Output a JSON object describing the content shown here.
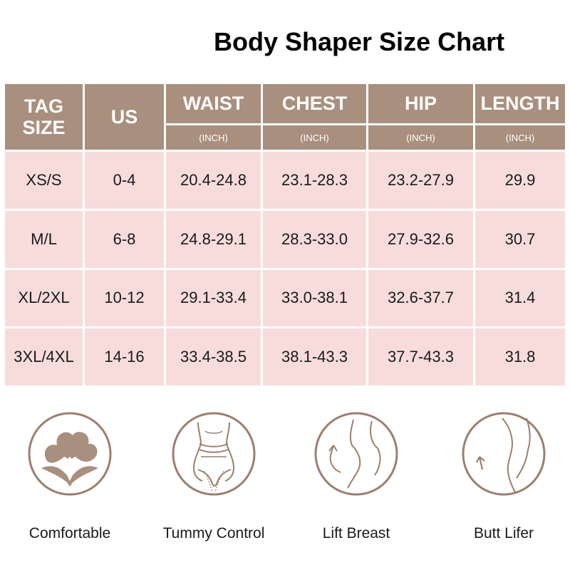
{
  "title": "Body Shaper Size Chart",
  "table": {
    "headers": {
      "tag_size": "TAG SIZE",
      "us": "US",
      "waist": "WAIST",
      "chest": "CHEST",
      "hip": "HIP",
      "length": "LENGTH",
      "unit": "(INCH)"
    },
    "rows": [
      {
        "tag": "XS/S",
        "us": "0-4",
        "waist": "20.4-24.8",
        "chest": "23.1-28.3",
        "hip": "23.2-27.9",
        "length": "29.9"
      },
      {
        "tag": "M/L",
        "us": "6-8",
        "waist": "24.8-29.1",
        "chest": "28.3-33.0",
        "hip": "27.9-32.6",
        "length": "30.7"
      },
      {
        "tag": "XL/2XL",
        "us": "10-12",
        "waist": "29.1-33.4",
        "chest": "33.0-38.1",
        "hip": "32.6-37.7",
        "length": "31.4"
      },
      {
        "tag": "3XL/4XL",
        "us": "14-16",
        "waist": "33.4-38.5",
        "chest": "38.1-43.3",
        "hip": "37.7-43.3",
        "length": "31.8"
      }
    ]
  },
  "features": [
    {
      "label": "Comfortable",
      "icon": "cotton-icon"
    },
    {
      "label": "Tummy Control",
      "icon": "waist-icon"
    },
    {
      "label": "Lift Breast",
      "icon": "breast-icon"
    },
    {
      "label": "Butt Lifer",
      "icon": "butt-icon"
    }
  ],
  "colors": {
    "header_bg": "#a98f7d",
    "cell_bg": "#f7dcdb",
    "icon_stroke": "#9c7f6c"
  }
}
